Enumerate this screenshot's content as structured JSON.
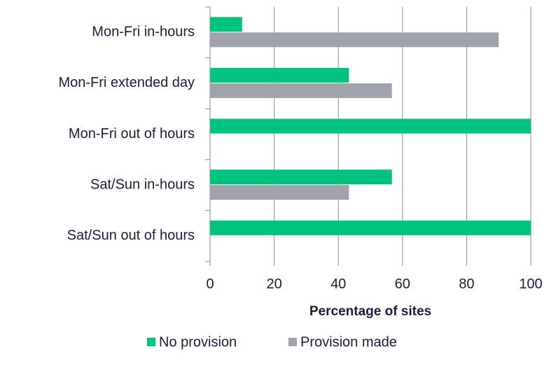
{
  "chart_data": {
    "type": "hbar",
    "categories": [
      "Mon-Fri in-hours",
      "Mon-Fri extended day",
      "Mon-Fri out of hours",
      "Sat/Sun in-hours",
      "Sat/Sun out of hours"
    ],
    "series": [
      {
        "name": "No provision",
        "color": "#00c47d",
        "values": [
          10,
          43.3,
          100,
          56.7,
          100
        ]
      },
      {
        "name": "Provision made",
        "color": "#a0a3ab",
        "values": [
          90,
          56.7,
          0,
          43.3,
          0
        ]
      }
    ],
    "xlabel": "Percentage of sites",
    "xlim": [
      0,
      100
    ],
    "xticks": [
      0,
      20,
      40,
      60,
      80,
      100
    ],
    "grid": true,
    "legend": "bottom"
  }
}
